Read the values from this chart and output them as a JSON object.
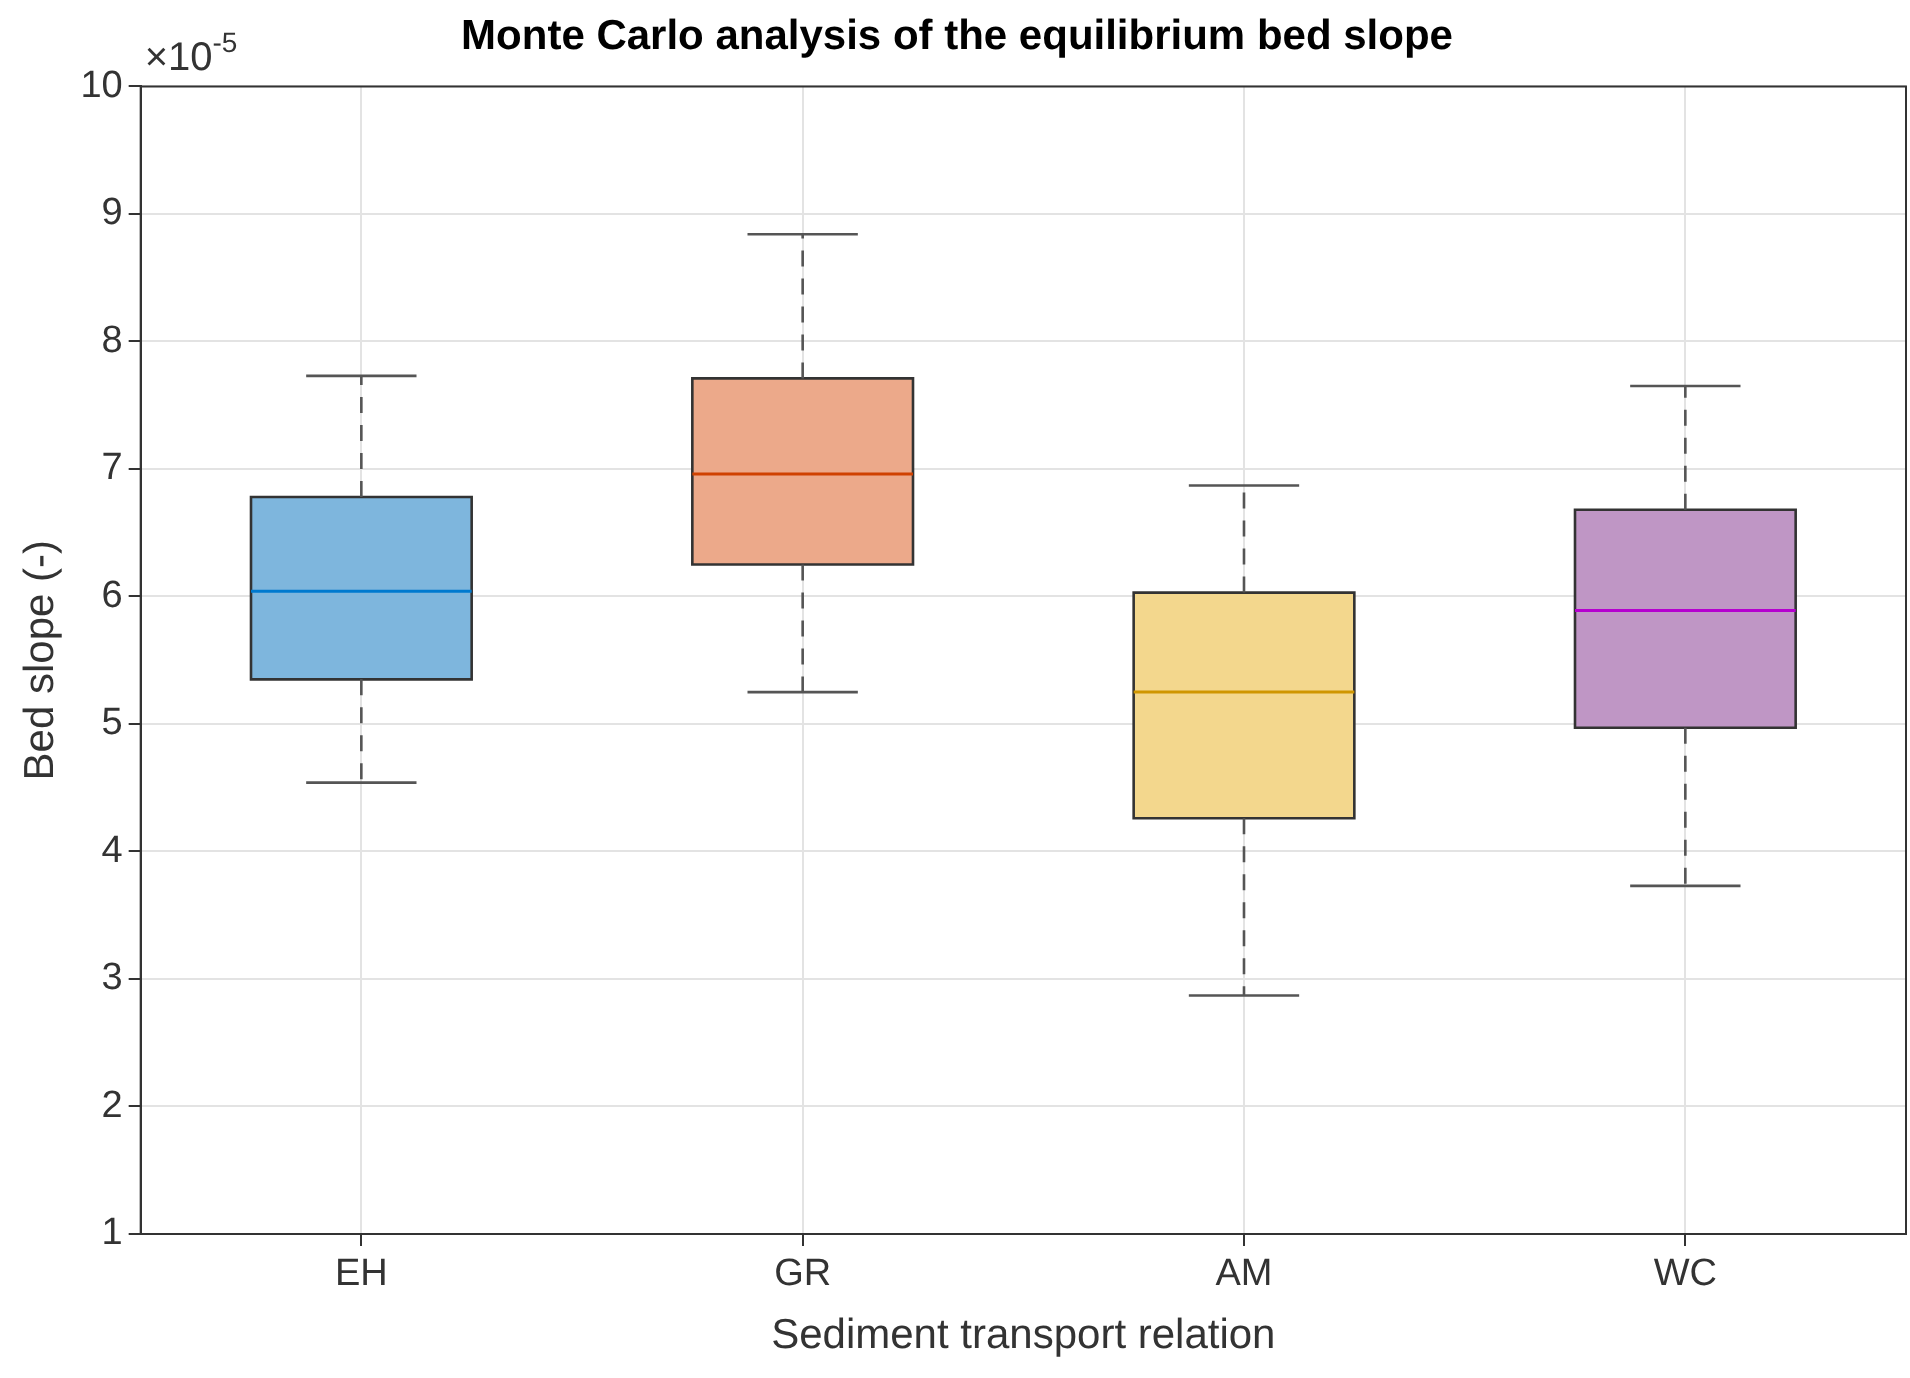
{
  "chart_data": {
    "type": "box",
    "title": "Monte Carlo analysis of the equilibrium bed slope",
    "xlabel": "Sediment transport relation",
    "ylabel": "Bed slope (-)",
    "annotations": [
      "×10$^{-5}$"
    ],
    "categories": [
      "EH",
      "GR",
      "AM",
      "WC"
    ],
    "colors": [
      "#7eb6dd",
      "#eca98a",
      "#f3d78d",
      "#bf96c5"
    ],
    "boxes": [
      {
        "low": 4.54,
        "q1": 5.35,
        "median": 6.04,
        "q3": 6.78,
        "high": 7.73
      },
      {
        "low": 5.25,
        "q1": 6.25,
        "median": 6.96,
        "q3": 7.71,
        "high": 8.84
      },
      {
        "low": 2.87,
        "q1": 4.26,
        "median": 5.25,
        "q3": 6.03,
        "high": 6.87
      },
      {
        "low": 3.73,
        "q1": 4.97,
        "median": 5.89,
        "q3": 6.68,
        "high": 7.65
      }
    ],
    "ylim": [
      1,
      10
    ],
    "yticks": [
      1,
      2,
      3,
      4,
      5,
      6,
      7,
      8,
      9,
      10
    ],
    "grid": true
  }
}
